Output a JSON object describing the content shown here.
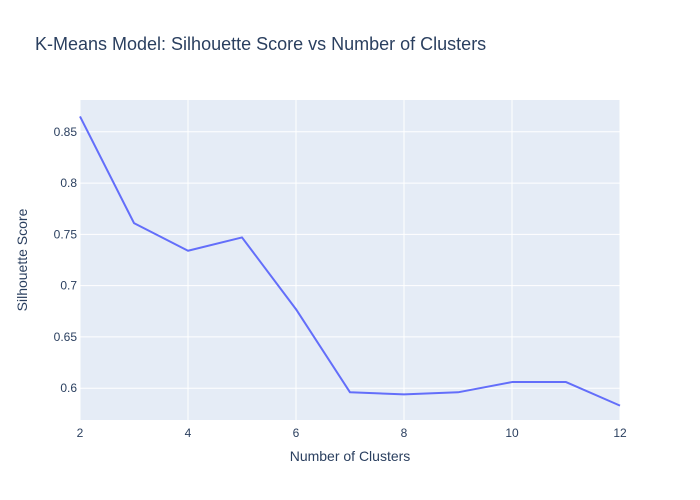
{
  "chart_data": {
    "type": "line",
    "title": "K-Means Model: Silhouette Score vs Number of Clusters",
    "xlabel": "Number of Clusters",
    "ylabel": "Silhouette Score",
    "x": [
      2,
      3,
      4,
      5,
      6,
      7,
      8,
      9,
      10,
      11,
      12
    ],
    "series": [
      {
        "values": [
          0.865,
          0.761,
          0.734,
          0.747,
          0.677,
          0.596,
          0.594,
          0.596,
          0.606,
          0.606,
          0.583
        ],
        "color": "#636efa"
      }
    ],
    "xlim": [
      2,
      12
    ],
    "ylim": [
      0.569,
      0.881
    ],
    "xticks": [
      2,
      4,
      6,
      8,
      10,
      12
    ],
    "xtick_labels": [
      "2",
      "4",
      "6",
      "8",
      "10",
      "12"
    ],
    "yticks": [
      0.6,
      0.65,
      0.7,
      0.75,
      0.8,
      0.85
    ],
    "ytick_labels": [
      "0.6",
      "0.65",
      "0.7",
      "0.75",
      "0.8",
      "0.85"
    ],
    "grid": true,
    "legend": "none",
    "colors": {
      "plot_background": "#e5ecf6",
      "grid": "#ffffff",
      "text": "#2a3f5f"
    }
  }
}
